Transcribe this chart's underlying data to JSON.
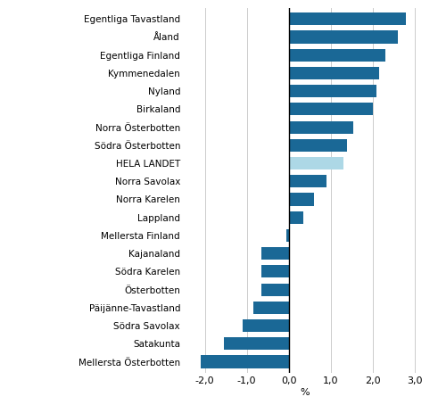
{
  "categories": [
    "Mellersta Österbotten",
    "Satakunta",
    "Södra Savolax",
    "Päijänne-Tavastland",
    "Österbotten",
    "Södra Karelen",
    "Kajanaland",
    "Mellersta Finland",
    "Lappland",
    "Norra Karelen",
    "Norra Savolax",
    "HELA LANDET",
    "Södra Österbotten",
    "Norra Österbotten",
    "Birkaland",
    "Nyland",
    "Kymmenedalen",
    "Egentliga Finland",
    "Åland",
    "Egentliga Tavastland"
  ],
  "values": [
    -2.1,
    -1.55,
    -1.1,
    -0.85,
    -0.65,
    -0.65,
    -0.65,
    -0.05,
    0.35,
    0.6,
    0.9,
    1.3,
    1.4,
    1.55,
    2.0,
    2.1,
    2.15,
    2.3,
    2.6,
    2.8
  ],
  "bar_color_default": "#1a6896",
  "bar_color_highlight": "#add8e6",
  "highlight_index": 11,
  "xlabel": "%",
  "xlim": [
    -2.5,
    3.25
  ],
  "xticks": [
    -2.0,
    -1.0,
    0.0,
    1.0,
    2.0,
    3.0
  ],
  "xtick_labels": [
    "-2,0",
    "-1,0",
    "0,0",
    "1,0",
    "2,0",
    "3,0"
  ],
  "label_fontsize": 7.5,
  "tick_fontsize": 8
}
